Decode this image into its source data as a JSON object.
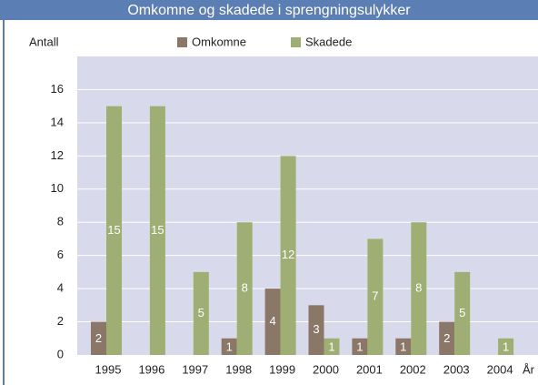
{
  "chart_data": {
    "type": "bar",
    "title": "Omkomne og skadede i sprengningsulykker",
    "y_label": "Antall",
    "x_label": "År",
    "categories": [
      "1995",
      "1996",
      "1997",
      "1998",
      "1999",
      "2000",
      "2001",
      "2002",
      "2003",
      "2004"
    ],
    "series": [
      {
        "name": "Omkomne",
        "color": "#8a7767",
        "values": [
          2,
          0,
          0,
          1,
          4,
          3,
          1,
          1,
          2,
          0
        ]
      },
      {
        "name": "Skadede",
        "color": "#9fae73",
        "values": [
          15,
          15,
          5,
          8,
          12,
          1,
          7,
          8,
          5,
          1
        ]
      }
    ],
    "ylim": [
      0,
      18
    ],
    "yticks": [
      0,
      2,
      4,
      6,
      8,
      10,
      12,
      14,
      16
    ],
    "grid": true
  }
}
